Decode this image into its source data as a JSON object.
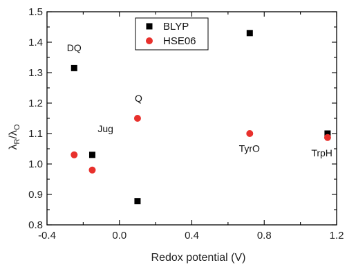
{
  "chart_data": {
    "type": "scatter",
    "xlabel": "Redox potential (V)",
    "ylabel_main": "λ",
    "ylabel_sub1": "R",
    "ylabel_slash": "/λ",
    "ylabel_sub2": "O",
    "xlim": [
      -0.4,
      1.2
    ],
    "ylim": [
      0.8,
      1.5
    ],
    "xticks": [
      {
        "value": -0.4,
        "label": "-0.4"
      },
      {
        "value": 0.0,
        "label": "0.0"
      },
      {
        "value": 0.4,
        "label": "0.4"
      },
      {
        "value": 0.8,
        "label": "0.8"
      },
      {
        "value": 1.2,
        "label": "1.2"
      }
    ],
    "yticks": [
      {
        "value": 0.8,
        "label": "0.8"
      },
      {
        "value": 0.9,
        "label": "0.9"
      },
      {
        "value": 1.0,
        "label": "1.0"
      },
      {
        "value": 1.1,
        "label": "1.1"
      },
      {
        "value": 1.2,
        "label": "1.2"
      },
      {
        "value": 1.3,
        "label": "1.3"
      },
      {
        "value": 1.4,
        "label": "1.4"
      },
      {
        "value": 1.5,
        "label": "1.5"
      }
    ],
    "series": [
      {
        "name": "BLYP",
        "marker": "square",
        "color": "#000000",
        "points": [
          {
            "x": -0.25,
            "y": 1.315
          },
          {
            "x": -0.15,
            "y": 1.03
          },
          {
            "x": 0.1,
            "y": 0.878
          },
          {
            "x": 0.72,
            "y": 1.43
          },
          {
            "x": 1.15,
            "y": 1.1
          }
        ]
      },
      {
        "name": "HSE06",
        "marker": "circle",
        "color": "#e8302c",
        "points": [
          {
            "x": -0.25,
            "y": 1.03
          },
          {
            "x": -0.15,
            "y": 0.98
          },
          {
            "x": 0.1,
            "y": 1.15
          },
          {
            "x": 0.72,
            "y": 1.1
          },
          {
            "x": 1.15,
            "y": 1.087
          }
        ]
      }
    ],
    "annotations": [
      {
        "text": "DQ",
        "x": -0.29,
        "y": 1.37
      },
      {
        "text": "Jug",
        "x": -0.12,
        "y": 1.105
      },
      {
        "text": "Q",
        "x": 0.085,
        "y": 1.205
      },
      {
        "text": "TyrO",
        "x": 0.66,
        "y": 1.04
      },
      {
        "text": "TrpH",
        "x": 1.06,
        "y": 1.025
      }
    ],
    "legend_position": "top-center",
    "grid": false
  }
}
